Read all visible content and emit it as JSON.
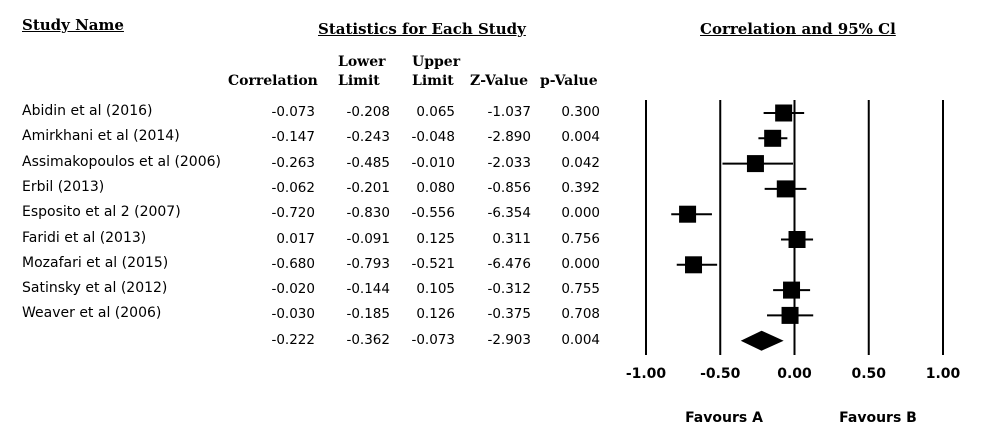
{
  "headers": {
    "study_name": "Study Name",
    "statistics": "Statistics for Each Study",
    "correlation_ci": "Correlation and 95% Cl"
  },
  "columns": {
    "correlation": "Correlation",
    "lower": [
      "Lower",
      "Limit"
    ],
    "upper": [
      "Upper",
      "Limit"
    ],
    "z": "Z-Value",
    "p": "p-Value"
  },
  "chart_data": {
    "type": "forest",
    "title": "Correlation and 95% Cl",
    "xlim": [
      -1.0,
      1.0
    ],
    "x_ticks": [
      "-1.00",
      "-0.50",
      "0.00",
      "0.50",
      "1.00"
    ],
    "x_tick_values": [
      -1.0,
      -0.5,
      0.0,
      0.5,
      1.0
    ],
    "favours_left": "Favours A",
    "favours_right": "Favours B",
    "studies": [
      {
        "name": "Abidin et al (2016)",
        "correlation": "-0.073",
        "lower": "-0.208",
        "upper": "0.065",
        "z": "-1.037",
        "p": "0.300"
      },
      {
        "name": "Amirkhani et al (2014)",
        "correlation": "-0.147",
        "lower": "-0.243",
        "upper": "-0.048",
        "z": "-2.890",
        "p": "0.004"
      },
      {
        "name": "Assimakopoulos et al (2006)",
        "correlation": "-0.263",
        "lower": "-0.485",
        "upper": "-0.010",
        "z": "-2.033",
        "p": "0.042"
      },
      {
        "name": "Erbil (2013)",
        "correlation": "-0.062",
        "lower": "-0.201",
        "upper": "0.080",
        "z": "-0.856",
        "p": "0.392"
      },
      {
        "name": "Esposito et al 2 (2007)",
        "correlation": "-0.720",
        "lower": "-0.830",
        "upper": "-0.556",
        "z": "-6.354",
        "p": "0.000"
      },
      {
        "name": "Faridi et al (2013)",
        "correlation": "0.017",
        "lower": "-0.091",
        "upper": "0.125",
        "z": "0.311",
        "p": "0.756"
      },
      {
        "name": "Mozafari et al (2015)",
        "correlation": "-0.680",
        "lower": "-0.793",
        "upper": "-0.521",
        "z": "-6.476",
        "p": "0.000"
      },
      {
        "name": "Satinsky et al (2012)",
        "correlation": "-0.020",
        "lower": "-0.144",
        "upper": "0.105",
        "z": "-0.312",
        "p": "0.755"
      },
      {
        "name": "Weaver et al (2006)",
        "correlation": "-0.030",
        "lower": "-0.185",
        "upper": "0.126",
        "z": "-0.375",
        "p": "0.708"
      }
    ],
    "summary": {
      "correlation": "-0.222",
      "lower": "-0.362",
      "upper": "-0.073",
      "z": "-2.903",
      "p": "0.004"
    }
  }
}
